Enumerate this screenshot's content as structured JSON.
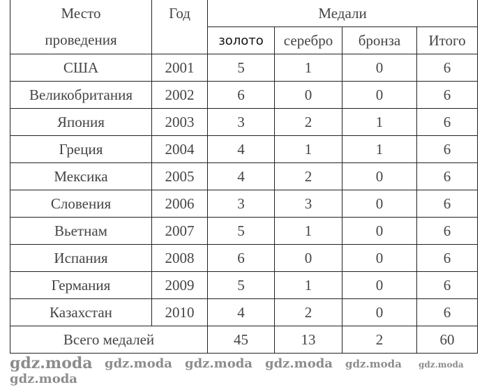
{
  "table": {
    "headers": {
      "place": "Место проведения",
      "place_line1": "Место",
      "place_line2": "проведения",
      "year": "Год",
      "medals": "Медали",
      "gold": "золото",
      "silver": "серебро",
      "bronze": "бронза",
      "total": "Итого"
    },
    "rows": [
      {
        "place": "США",
        "year": "2001",
        "gold": "5",
        "silver": "1",
        "bronze": "0",
        "total": "6"
      },
      {
        "place": "Великобритания",
        "year": "2002",
        "gold": "6",
        "silver": "0",
        "bronze": "0",
        "total": "6"
      },
      {
        "place": "Япония",
        "year": "2003",
        "gold": "3",
        "silver": "2",
        "bronze": "1",
        "total": "6"
      },
      {
        "place": "Греция",
        "year": "2004",
        "gold": "4",
        "silver": "1",
        "bronze": "1",
        "total": "6"
      },
      {
        "place": "Мексика",
        "year": "2005",
        "gold": "4",
        "silver": "2",
        "bronze": "0",
        "total": "6"
      },
      {
        "place": "Словения",
        "year": "2006",
        "gold": "3",
        "silver": "3",
        "bronze": "0",
        "total": "6"
      },
      {
        "place": "Вьетнам",
        "year": "2007",
        "gold": "5",
        "silver": "1",
        "bronze": "0",
        "total": "6"
      },
      {
        "place": "Испания",
        "year": "2008",
        "gold": "6",
        "silver": "0",
        "bronze": "0",
        "total": "6"
      },
      {
        "place": "Германия",
        "year": "2009",
        "gold": "5",
        "silver": "1",
        "bronze": "0",
        "total": "6"
      },
      {
        "place": "Казахстан",
        "year": "2010",
        "gold": "4",
        "silver": "2",
        "bronze": "0",
        "total": "6"
      }
    ],
    "footer": {
      "label": "Всего медалей",
      "gold": "45",
      "silver": "13",
      "bronze": "2",
      "total": "60"
    }
  },
  "watermark": "gdz.moda"
}
